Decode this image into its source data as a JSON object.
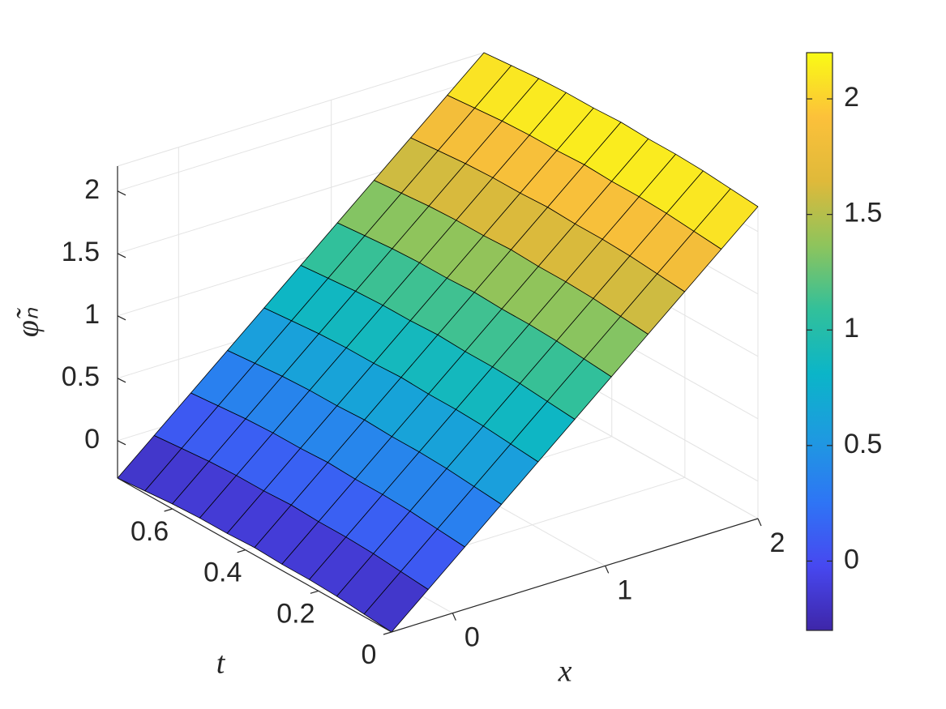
{
  "chart_data": {
    "type": "surface",
    "xlabel": "x",
    "ylabel": "t",
    "zlabel": "φ̃ₙ",
    "x": [
      -0.4,
      -0.16,
      0.08,
      0.32,
      0.56,
      0.8,
      1.04,
      1.28,
      1.52,
      1.76,
      2.0
    ],
    "t": [
      0,
      0.075,
      0.15,
      0.225,
      0.3,
      0.375,
      0.45,
      0.525,
      0.6,
      0.675,
      0.75
    ],
    "z": [
      [
        -0.3,
        -0.05,
        0.2,
        0.45,
        0.7,
        0.95,
        1.2,
        1.45,
        1.7,
        1.95,
        2.2
      ],
      [
        -0.28,
        -0.03,
        0.22,
        0.47,
        0.72,
        0.97,
        1.22,
        1.47,
        1.72,
        1.97,
        2.22
      ],
      [
        -0.26,
        -0.01,
        0.24,
        0.49,
        0.74,
        0.99,
        1.24,
        1.49,
        1.74,
        1.99,
        2.24
      ],
      [
        -0.25,
        0,
        0.25,
        0.5,
        0.75,
        1,
        1.25,
        1.5,
        1.75,
        2,
        2.25
      ],
      [
        -0.25,
        0,
        0.25,
        0.5,
        0.75,
        1,
        1.25,
        1.5,
        1.75,
        2,
        2.25
      ],
      [
        -0.24,
        0.01,
        0.26,
        0.51,
        0.76,
        1.01,
        1.26,
        1.51,
        1.76,
        2.01,
        2.26
      ],
      [
        -0.25,
        0,
        0.25,
        0.5,
        0.75,
        1,
        1.25,
        1.5,
        1.75,
        2,
        2.25
      ],
      [
        -0.25,
        0,
        0.25,
        0.5,
        0.75,
        1,
        1.25,
        1.5,
        1.75,
        2,
        2.25
      ],
      [
        -0.26,
        -0.01,
        0.24,
        0.49,
        0.74,
        0.99,
        1.24,
        1.49,
        1.74,
        1.99,
        2.24
      ],
      [
        -0.28,
        -0.03,
        0.22,
        0.47,
        0.72,
        0.97,
        1.22,
        1.47,
        1.72,
        1.97,
        2.22
      ],
      [
        -0.3,
        -0.05,
        0.2,
        0.45,
        0.7,
        0.95,
        1.2,
        1.45,
        1.7,
        1.95,
        2.2
      ]
    ],
    "xlim": [
      -0.4,
      2.0
    ],
    "xticks": [
      0,
      1,
      2
    ],
    "tlim": [
      0,
      0.75
    ],
    "tticks": [
      0,
      0.2,
      0.4,
      0.6
    ],
    "zlim": [
      -0.3,
      2.2
    ],
    "zticks": [
      0,
      0.5,
      1,
      1.5,
      2
    ],
    "clim": [
      -0.3,
      2.2
    ],
    "cticks": [
      0,
      0.5,
      1,
      1.5,
      2
    ],
    "colormap": [
      "#3e26a8",
      "#4748f0",
      "#2e75f5",
      "#1e9ae0",
      "#0bb5c8",
      "#32c09a",
      "#8ec45c",
      "#dfb93a",
      "#fcc13a",
      "#f9fb15"
    ],
    "grid": true,
    "colorbar": true
  }
}
